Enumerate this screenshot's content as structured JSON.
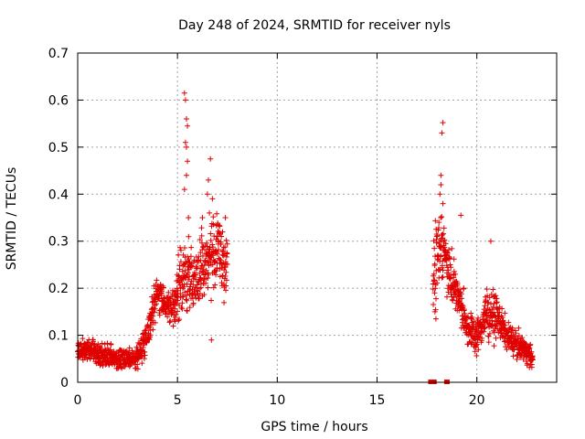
{
  "chart_data": {
    "type": "scatter",
    "title": "Day 248 of 2024, SRMTID for receiver nyls",
    "xlabel": "GPS time / hours",
    "ylabel": "SRMTID / TECUs",
    "xlim": [
      0,
      24
    ],
    "ylim": [
      0,
      0.7
    ],
    "xticks": [
      0,
      5,
      10,
      15,
      20
    ],
    "yticks": [
      0,
      0.1,
      0.2,
      0.3,
      0.4,
      0.5,
      0.6,
      0.7
    ],
    "grid": true,
    "color": "#e00000",
    "marker": "plus",
    "series": [
      {
        "name": "SRMTID",
        "anchors": [
          {
            "t": 0.0,
            "v": 0.062,
            "s": 0.022
          },
          {
            "t": 0.5,
            "v": 0.072,
            "s": 0.02
          },
          {
            "t": 1.0,
            "v": 0.062,
            "s": 0.022
          },
          {
            "t": 1.5,
            "v": 0.055,
            "s": 0.022
          },
          {
            "t": 2.0,
            "v": 0.05,
            "s": 0.02
          },
          {
            "t": 2.5,
            "v": 0.048,
            "s": 0.02
          },
          {
            "t": 3.0,
            "v": 0.055,
            "s": 0.02
          },
          {
            "t": 3.4,
            "v": 0.09,
            "s": 0.025
          },
          {
            "t": 3.7,
            "v": 0.14,
            "s": 0.03
          },
          {
            "t": 4.0,
            "v": 0.19,
            "s": 0.035
          },
          {
            "t": 4.4,
            "v": 0.17,
            "s": 0.035
          },
          {
            "t": 4.8,
            "v": 0.15,
            "s": 0.04
          },
          {
            "t": 5.2,
            "v": 0.23,
            "s": 0.06
          },
          {
            "t": 5.6,
            "v": 0.22,
            "s": 0.06
          },
          {
            "t": 6.0,
            "v": 0.22,
            "s": 0.06
          },
          {
            "t": 6.5,
            "v": 0.26,
            "s": 0.07
          },
          {
            "t": 7.0,
            "v": 0.28,
            "s": 0.07
          },
          {
            "t": 7.5,
            "v": 0.24,
            "s": 0.06
          }
        ],
        "anchors2": [
          {
            "t": 17.8,
            "v": 0.23,
            "s": 0.07
          },
          {
            "t": 18.2,
            "v": 0.3,
            "s": 0.07
          },
          {
            "t": 18.6,
            "v": 0.24,
            "s": 0.05
          },
          {
            "t": 19.0,
            "v": 0.19,
            "s": 0.04
          },
          {
            "t": 19.5,
            "v": 0.12,
            "s": 0.035
          },
          {
            "t": 20.0,
            "v": 0.095,
            "s": 0.03
          },
          {
            "t": 20.5,
            "v": 0.15,
            "s": 0.05
          },
          {
            "t": 21.0,
            "v": 0.14,
            "s": 0.035
          },
          {
            "t": 21.5,
            "v": 0.1,
            "s": 0.025
          },
          {
            "t": 22.0,
            "v": 0.08,
            "s": 0.025
          },
          {
            "t": 22.5,
            "v": 0.065,
            "s": 0.02
          },
          {
            "t": 22.8,
            "v": 0.05,
            "s": 0.02
          }
        ],
        "outliers": [
          {
            "t": 5.35,
            "v": 0.615
          },
          {
            "t": 5.4,
            "v": 0.6
          },
          {
            "t": 5.45,
            "v": 0.56
          },
          {
            "t": 5.5,
            "v": 0.545
          },
          {
            "t": 5.4,
            "v": 0.51
          },
          {
            "t": 5.45,
            "v": 0.5
          },
          {
            "t": 5.5,
            "v": 0.47
          },
          {
            "t": 5.45,
            "v": 0.44
          },
          {
            "t": 5.35,
            "v": 0.41
          },
          {
            "t": 5.55,
            "v": 0.35
          },
          {
            "t": 6.65,
            "v": 0.475
          },
          {
            "t": 6.55,
            "v": 0.43
          },
          {
            "t": 6.5,
            "v": 0.4
          },
          {
            "t": 6.75,
            "v": 0.39
          },
          {
            "t": 6.6,
            "v": 0.36
          },
          {
            "t": 6.25,
            "v": 0.35
          },
          {
            "t": 7.4,
            "v": 0.35
          },
          {
            "t": 6.7,
            "v": 0.09
          },
          {
            "t": 18.3,
            "v": 0.552
          },
          {
            "t": 18.25,
            "v": 0.53
          },
          {
            "t": 18.2,
            "v": 0.44
          },
          {
            "t": 18.2,
            "v": 0.42
          },
          {
            "t": 18.15,
            "v": 0.4
          },
          {
            "t": 18.3,
            "v": 0.38
          },
          {
            "t": 18.1,
            "v": 0.34
          },
          {
            "t": 19.2,
            "v": 0.355
          },
          {
            "t": 20.7,
            "v": 0.3
          },
          {
            "t": 17.9,
            "v": 0.15
          },
          {
            "t": 17.95,
            "v": 0.135
          }
        ],
        "near_zero": [
          17.7,
          17.78,
          17.85,
          18.5
        ]
      }
    ]
  }
}
